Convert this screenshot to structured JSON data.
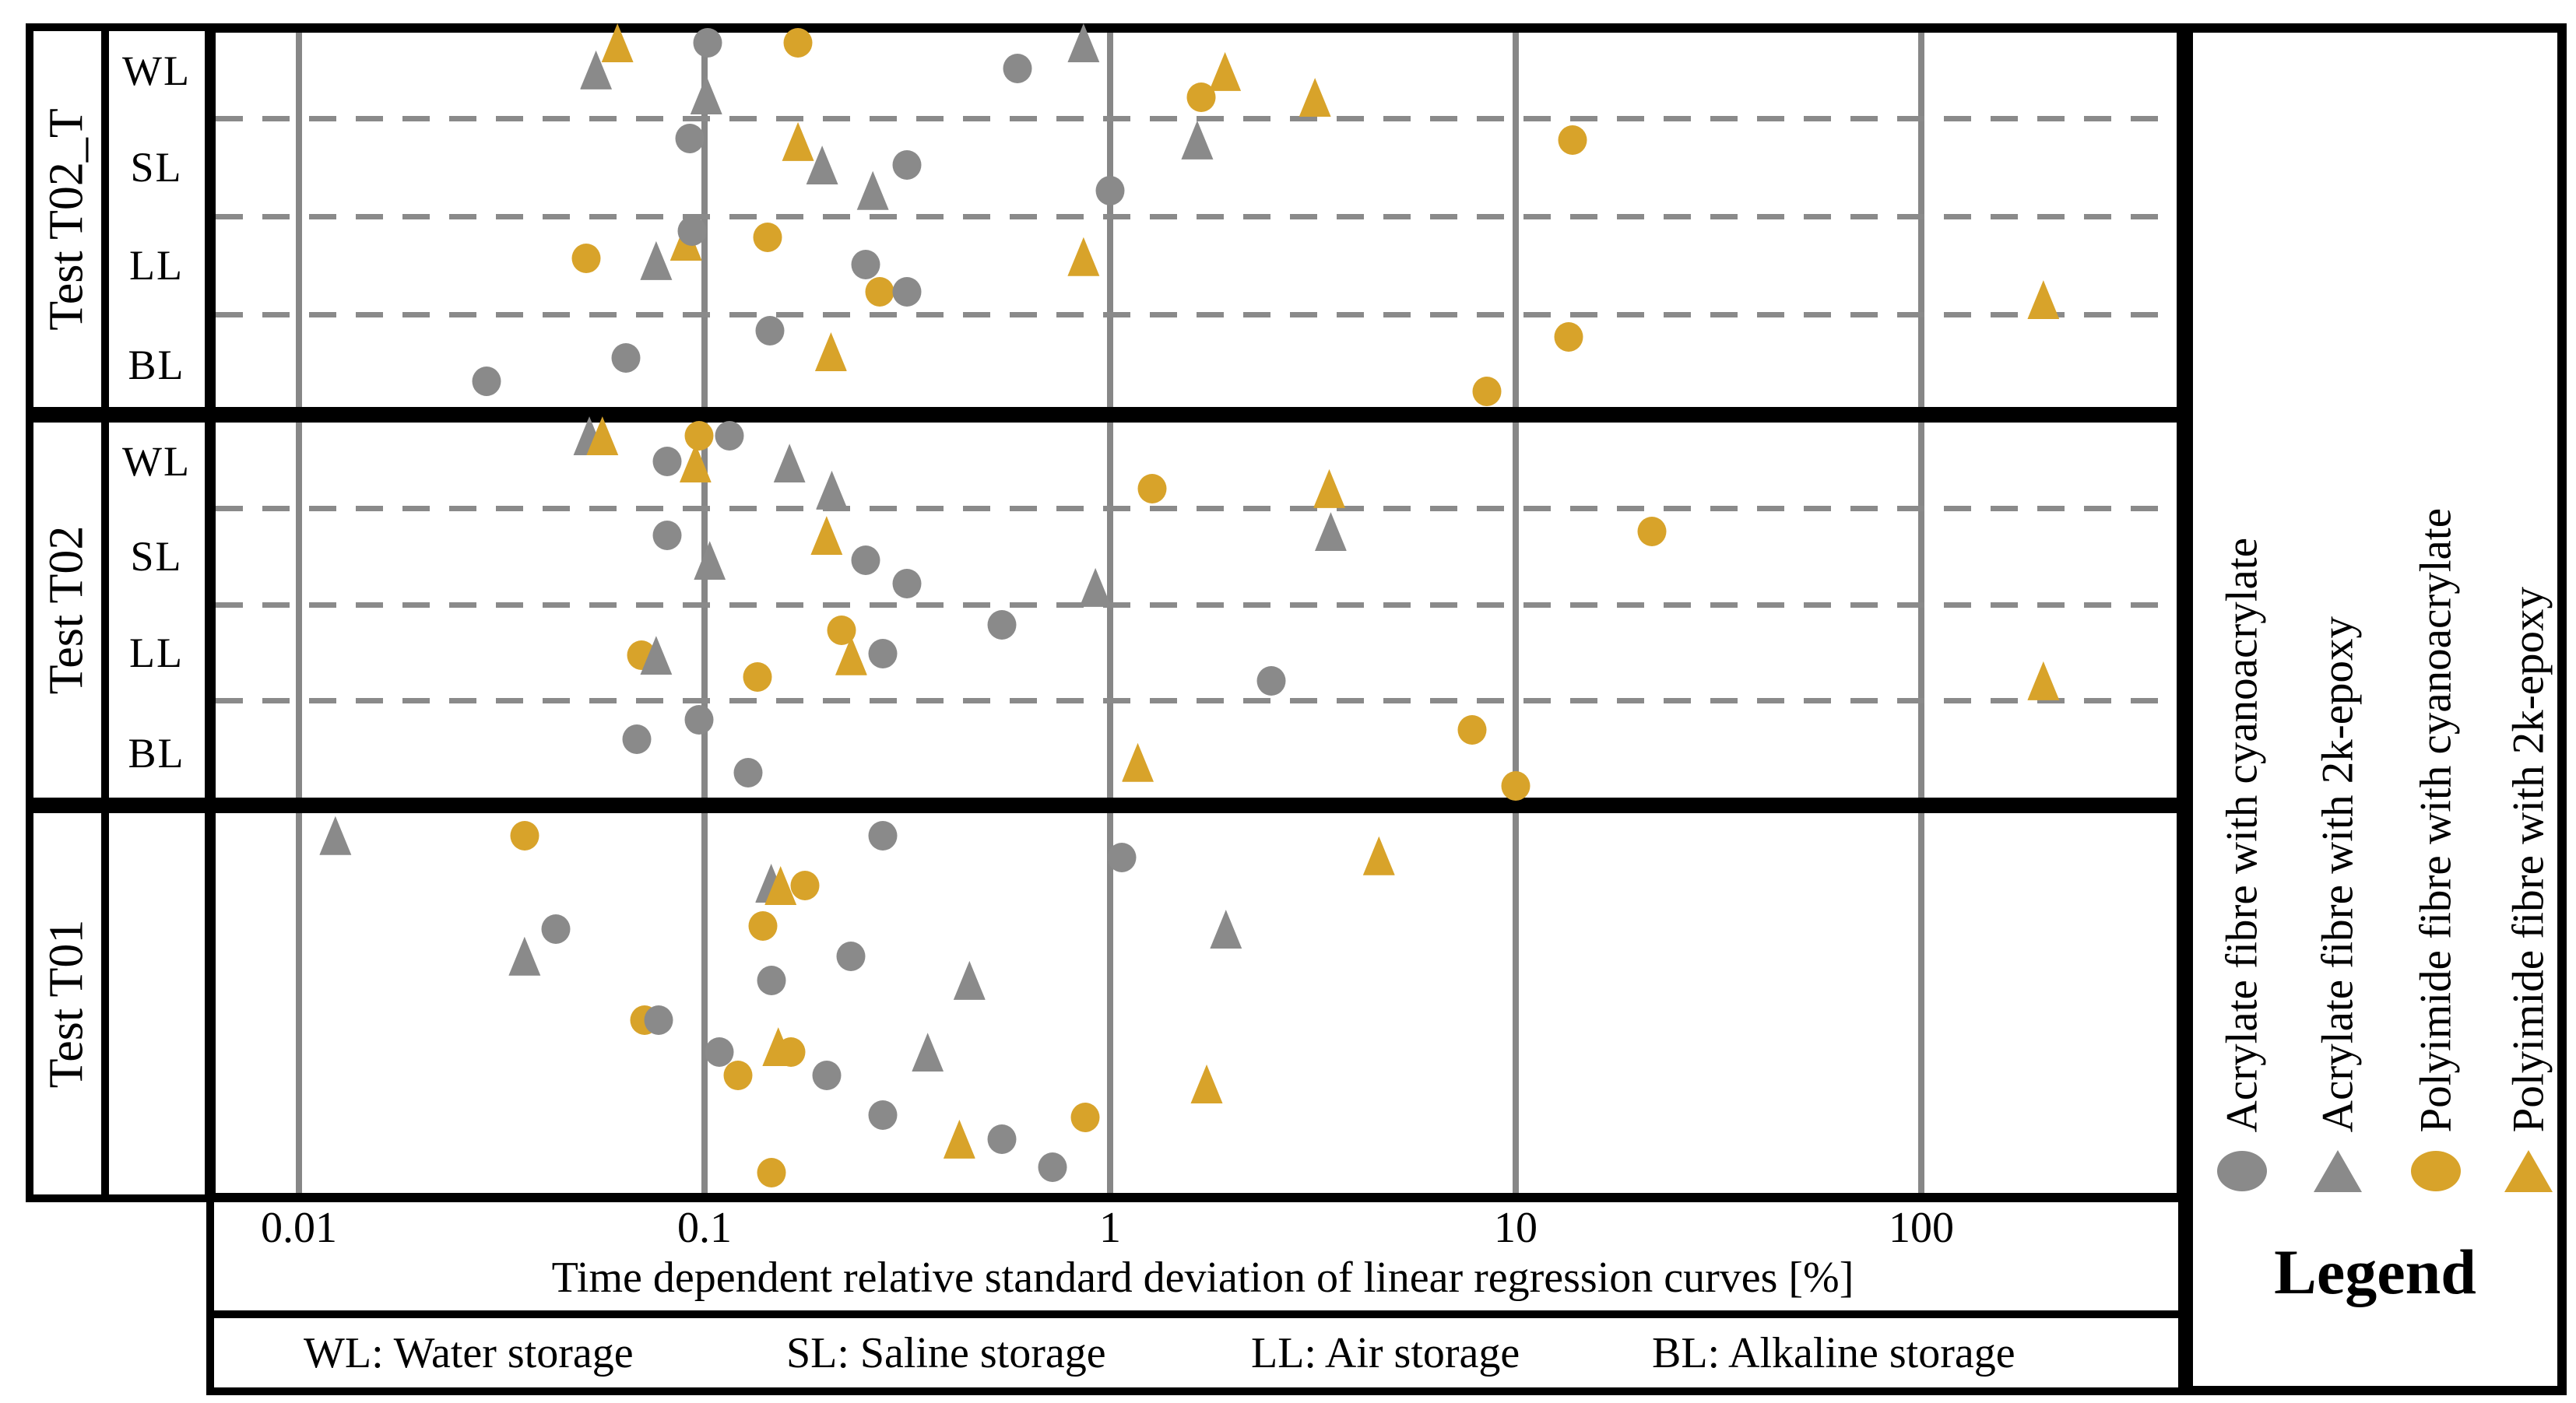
{
  "axis": {
    "title": "Time dependent relative standard deviation of linear regression curves [%]",
    "ticks": [
      "0.01",
      "0.1",
      "1",
      "10",
      "100"
    ],
    "tick_values": [
      0.01,
      0.1,
      1,
      10,
      100
    ]
  },
  "sections": [
    {
      "id": "T02_T",
      "label": "Test T02_T",
      "rows": [
        "WL",
        "SL",
        "LL",
        "BL"
      ]
    },
    {
      "id": "T02",
      "label": "Test T02",
      "rows": [
        "WL",
        "SL",
        "LL",
        "BL"
      ]
    },
    {
      "id": "T01",
      "label": "Test T01",
      "rows": []
    }
  ],
  "footer": {
    "items": [
      "WL: Water storage",
      "SL: Saline storage",
      "LL: Air storage",
      "BL: Alkaline storage"
    ]
  },
  "legend": {
    "title": "Legend",
    "series": [
      {
        "id": "AC",
        "label": "Acrylate fibre with cyanoacrylate",
        "marker": "circle",
        "color": "#8a8a8a"
      },
      {
        "id": "AE",
        "label": "Acrylate fibre with 2k-epoxy",
        "marker": "triangle",
        "color": "#8a8a8a"
      },
      {
        "id": "PC",
        "label": "Polyimide fibre with cyanoacrylate",
        "marker": "circle",
        "color": "#d8a32a"
      },
      {
        "id": "PE",
        "label": "Polyimide fibre with 2k-epoxy",
        "marker": "triangle",
        "color": "#d8a32a"
      }
    ]
  },
  "colors": {
    "gray": "#8a8a8a",
    "orange": "#d8a32a",
    "grid": "#878787",
    "frame": "#000000"
  },
  "chart_data": {
    "type": "scatter",
    "x_axis": {
      "scale": "log",
      "label": "Time dependent relative standard deviation of linear regression curves [%]",
      "min": 0.006,
      "max": 430,
      "gridlines": [
        0.01,
        0.1,
        1,
        10,
        100
      ],
      "grid": true
    },
    "y_axis": {
      "label": "",
      "panels": [
        "Test T02_T",
        "Test T02",
        "Test T01"
      ],
      "subrows": [
        "WL",
        "SL",
        "LL",
        "BL"
      ]
    },
    "legend_position": "right",
    "points": [
      {
        "s": "AE",
        "sec": "T02_T",
        "v": 0.054,
        "y": 0.119
      },
      {
        "s": "PE",
        "sec": "T02_T",
        "v": 0.061,
        "y": 0.05
      },
      {
        "s": "AC",
        "sec": "T02_T",
        "v": 0.102,
        "y": 0.05
      },
      {
        "s": "AE",
        "sec": "T02_T",
        "v": 0.101,
        "y": 0.183
      },
      {
        "s": "PC",
        "sec": "T02_T",
        "v": 0.17,
        "y": 0.05
      },
      {
        "s": "AC",
        "sec": "T02_T",
        "v": 0.59,
        "y": 0.115
      },
      {
        "s": "AE",
        "sec": "T02_T",
        "v": 0.86,
        "y": 0.05
      },
      {
        "s": "PC",
        "sec": "T02_T",
        "v": 1.68,
        "y": 0.189
      },
      {
        "s": "PE",
        "sec": "T02_T",
        "v": 1.92,
        "y": 0.123
      },
      {
        "s": "PE",
        "sec": "T02_T",
        "v": 3.2,
        "y": 0.189
      },
      {
        "s": "AC",
        "sec": "T02_T",
        "v": 0.092,
        "y": 0.294
      },
      {
        "s": "PE",
        "sec": "T02_T",
        "v": 0.17,
        "y": 0.302
      },
      {
        "s": "AE",
        "sec": "T02_T",
        "v": 0.195,
        "y": 0.362
      },
      {
        "s": "AC",
        "sec": "T02_T",
        "v": 0.315,
        "y": 0.362
      },
      {
        "s": "AE",
        "sec": "T02_T",
        "v": 0.26,
        "y": 0.427
      },
      {
        "s": "AC",
        "sec": "T02_T",
        "v": 1.0,
        "y": 0.427
      },
      {
        "s": "AE",
        "sec": "T02_T",
        "v": 1.64,
        "y": 0.298
      },
      {
        "s": "PC",
        "sec": "T02_T",
        "v": 13.8,
        "y": 0.298
      },
      {
        "s": "PE",
        "sec": "T02_T",
        "v": 0.09,
        "y": 0.557
      },
      {
        "s": "AC",
        "sec": "T02_T",
        "v": 0.093,
        "y": 0.531
      },
      {
        "s": "PC",
        "sec": "T02_T",
        "v": 0.143,
        "y": 0.547
      },
      {
        "s": "PC",
        "sec": "T02_T",
        "v": 0.051,
        "y": 0.6
      },
      {
        "s": "AE",
        "sec": "T02_T",
        "v": 0.076,
        "y": 0.606
      },
      {
        "s": "AC",
        "sec": "T02_T",
        "v": 0.25,
        "y": 0.616
      },
      {
        "s": "PC",
        "sec": "T02_T",
        "v": 0.27,
        "y": 0.686
      },
      {
        "s": "AC",
        "sec": "T02_T",
        "v": 0.315,
        "y": 0.686
      },
      {
        "s": "PE",
        "sec": "T02_T",
        "v": 0.86,
        "y": 0.596
      },
      {
        "s": "PE",
        "sec": "T02_T",
        "v": 200.0,
        "y": 0.706
      },
      {
        "s": "AC",
        "sec": "T02_T",
        "v": 0.029,
        "y": 0.915
      },
      {
        "s": "AC",
        "sec": "T02_T",
        "v": 0.064,
        "y": 0.855
      },
      {
        "s": "AC",
        "sec": "T02_T",
        "v": 0.145,
        "y": 0.785
      },
      {
        "s": "PE",
        "sec": "T02_T",
        "v": 0.205,
        "y": 0.839
      },
      {
        "s": "PC",
        "sec": "T02_T",
        "v": 13.5,
        "y": 0.801
      },
      {
        "s": "PC",
        "sec": "T02_T",
        "v": 8.5,
        "y": 0.94
      },
      {
        "s": "AE",
        "sec": "T02",
        "v": 0.052,
        "y": 0.054
      },
      {
        "s": "PE",
        "sec": "T02",
        "v": 0.056,
        "y": 0.054
      },
      {
        "s": "PC",
        "sec": "T02",
        "v": 0.097,
        "y": 0.054
      },
      {
        "s": "AC",
        "sec": "T02",
        "v": 0.115,
        "y": 0.054
      },
      {
        "s": "AC",
        "sec": "T02",
        "v": 0.081,
        "y": 0.12
      },
      {
        "s": "PE",
        "sec": "T02",
        "v": 0.095,
        "y": 0.124
      },
      {
        "s": "AE",
        "sec": "T02",
        "v": 0.162,
        "y": 0.124
      },
      {
        "s": "AE",
        "sec": "T02",
        "v": 0.206,
        "y": 0.193
      },
      {
        "s": "PC",
        "sec": "T02",
        "v": 1.27,
        "y": 0.189
      },
      {
        "s": "PE",
        "sec": "T02",
        "v": 3.47,
        "y": 0.189
      },
      {
        "s": "AC",
        "sec": "T02",
        "v": 0.081,
        "y": 0.309
      },
      {
        "s": "PE",
        "sec": "T02",
        "v": 0.2,
        "y": 0.309
      },
      {
        "s": "AE",
        "sec": "T02",
        "v": 0.103,
        "y": 0.373
      },
      {
        "s": "AC",
        "sec": "T02",
        "v": 0.25,
        "y": 0.373
      },
      {
        "s": "AC",
        "sec": "T02",
        "v": 0.315,
        "y": 0.432
      },
      {
        "s": "AE",
        "sec": "T02",
        "v": 0.92,
        "y": 0.442
      },
      {
        "s": "AE",
        "sec": "T02",
        "v": 3.5,
        "y": 0.299
      },
      {
        "s": "PC",
        "sec": "T02",
        "v": 21.7,
        "y": 0.299
      },
      {
        "s": "PC",
        "sec": "T02",
        "v": 0.218,
        "y": 0.552
      },
      {
        "s": "PE",
        "sec": "T02",
        "v": 0.23,
        "y": 0.617
      },
      {
        "s": "AC",
        "sec": "T02",
        "v": 0.275,
        "y": 0.612
      },
      {
        "s": "AC",
        "sec": "T02",
        "v": 0.54,
        "y": 0.538
      },
      {
        "s": "PC",
        "sec": "T02",
        "v": 0.07,
        "y": 0.616
      },
      {
        "s": "AE",
        "sec": "T02",
        "v": 0.076,
        "y": 0.616
      },
      {
        "s": "PC",
        "sec": "T02",
        "v": 0.135,
        "y": 0.671
      },
      {
        "s": "AC",
        "sec": "T02",
        "v": 2.5,
        "y": 0.681
      },
      {
        "s": "PE",
        "sec": "T02",
        "v": 200.0,
        "y": 0.681
      },
      {
        "s": "AC",
        "sec": "T02",
        "v": 0.097,
        "y": 0.781
      },
      {
        "s": "AC",
        "sec": "T02",
        "v": 0.068,
        "y": 0.831
      },
      {
        "s": "AC",
        "sec": "T02",
        "v": 0.128,
        "y": 0.916
      },
      {
        "s": "PE",
        "sec": "T02",
        "v": 1.17,
        "y": 0.89
      },
      {
        "s": "PC",
        "sec": "T02",
        "v": 7.8,
        "y": 0.807
      },
      {
        "s": "PC",
        "sec": "T02",
        "v": 10.0,
        "y": 0.95
      },
      {
        "s": "AE",
        "sec": "T01",
        "v": 0.0123,
        "y": 0.076
      },
      {
        "s": "PC",
        "sec": "T01",
        "v": 0.036,
        "y": 0.076
      },
      {
        "s": "AC",
        "sec": "T01",
        "v": 0.275,
        "y": 0.076
      },
      {
        "s": "AC",
        "sec": "T01",
        "v": 1.07,
        "y": 0.131
      },
      {
        "s": "PE",
        "sec": "T01",
        "v": 4.6,
        "y": 0.127
      },
      {
        "s": "AE",
        "sec": "T01",
        "v": 0.146,
        "y": 0.196
      },
      {
        "s": "PE",
        "sec": "T01",
        "v": 0.154,
        "y": 0.202
      },
      {
        "s": "PC",
        "sec": "T01",
        "v": 0.177,
        "y": 0.202
      },
      {
        "s": "PC",
        "sec": "T01",
        "v": 0.139,
        "y": 0.304
      },
      {
        "s": "AC",
        "sec": "T01",
        "v": 0.043,
        "y": 0.312
      },
      {
        "s": "AE",
        "sec": "T01",
        "v": 1.93,
        "y": 0.312
      },
      {
        "s": "AE",
        "sec": "T01",
        "v": 0.036,
        "y": 0.38
      },
      {
        "s": "AC",
        "sec": "T01",
        "v": 0.23,
        "y": 0.38
      },
      {
        "s": "AC",
        "sec": "T01",
        "v": 0.146,
        "y": 0.441
      },
      {
        "s": "AE",
        "sec": "T01",
        "v": 0.45,
        "y": 0.441
      },
      {
        "s": "PC",
        "sec": "T01",
        "v": 0.071,
        "y": 0.541
      },
      {
        "s": "AC",
        "sec": "T01",
        "v": 0.077,
        "y": 0.541
      },
      {
        "s": "AC",
        "sec": "T01",
        "v": 0.109,
        "y": 0.622
      },
      {
        "s": "PE",
        "sec": "T01",
        "v": 0.152,
        "y": 0.608
      },
      {
        "s": "PC",
        "sec": "T01",
        "v": 0.163,
        "y": 0.622
      },
      {
        "s": "AE",
        "sec": "T01",
        "v": 0.355,
        "y": 0.622
      },
      {
        "s": "PC",
        "sec": "T01",
        "v": 0.121,
        "y": 0.68
      },
      {
        "s": "AC",
        "sec": "T01",
        "v": 0.2,
        "y": 0.68
      },
      {
        "s": "PE",
        "sec": "T01",
        "v": 1.73,
        "y": 0.702
      },
      {
        "s": "AC",
        "sec": "T01",
        "v": 0.275,
        "y": 0.78
      },
      {
        "s": "PC",
        "sec": "T01",
        "v": 0.87,
        "y": 0.786
      },
      {
        "s": "PE",
        "sec": "T01",
        "v": 0.425,
        "y": 0.841
      },
      {
        "s": "AC",
        "sec": "T01",
        "v": 0.54,
        "y": 0.841
      },
      {
        "s": "AC",
        "sec": "T01",
        "v": 0.72,
        "y": 0.912
      },
      {
        "s": "PC",
        "sec": "T01",
        "v": 0.146,
        "y": 0.925
      }
    ]
  }
}
